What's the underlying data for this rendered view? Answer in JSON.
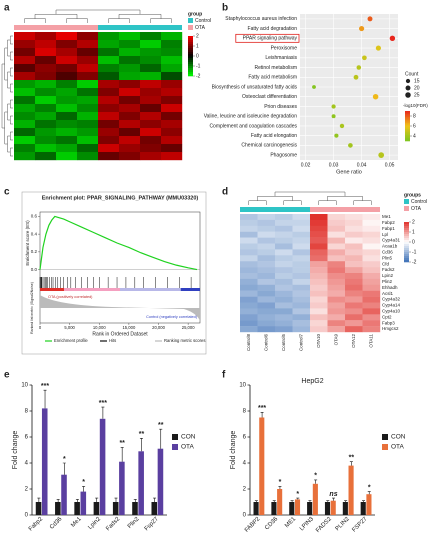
{
  "chart_data": [
    {
      "panel": "a",
      "type": "heatmap",
      "groups": [
        {
          "name": "Control",
          "color": "#2ec4c6"
        },
        {
          "name": "OTA",
          "color": "#f4a0a6"
        }
      ],
      "legend_title": "group",
      "column_group": [
        1,
        1,
        1,
        1,
        0,
        0,
        0,
        0
      ],
      "colormap": [
        "#00ff00",
        "#000000",
        "#ff0000"
      ],
      "zlim": [
        -2,
        2
      ],
      "zticks": [
        2,
        1,
        0,
        -1,
        -2
      ],
      "matrix": [
        [
          1.6,
          1.3,
          1.8,
          1.1,
          -1.2,
          -1.5,
          -1.0,
          -1.4
        ],
        [
          1.2,
          1.5,
          1.0,
          1.4,
          -1.3,
          -1.1,
          -1.6,
          -1.0
        ],
        [
          0.9,
          1.7,
          1.3,
          0.8,
          -0.9,
          -1.4,
          -1.2,
          -1.1
        ],
        [
          1.4,
          0.8,
          1.6,
          1.2,
          -1.5,
          -0.9,
          -1.1,
          -1.5
        ],
        [
          0.7,
          1.1,
          0.9,
          1.5,
          -1.0,
          -1.2,
          -0.8,
          -1.3
        ],
        [
          1.3,
          1.0,
          0.6,
          1.0,
          -0.7,
          -1.3,
          -1.4,
          -0.6
        ],
        [
          -1.2,
          -1.4,
          -1.0,
          -1.6,
          1.3,
          1.1,
          1.5,
          1.2
        ],
        [
          -1.5,
          -1.1,
          -1.3,
          -0.9,
          1.0,
          1.6,
          1.2,
          1.4
        ],
        [
          -0.9,
          -1.6,
          -1.2,
          -1.3,
          1.4,
          0.9,
          1.3,
          1.0
        ],
        [
          -1.3,
          -1.0,
          -1.5,
          -1.1,
          1.1,
          1.3,
          0.8,
          1.6
        ],
        [
          -1.1,
          -1.3,
          -0.8,
          -1.4,
          1.5,
          1.0,
          1.4,
          0.9
        ],
        [
          -1.4,
          -0.9,
          -1.1,
          -1.0,
          0.9,
          1.4,
          1.1,
          1.3
        ],
        [
          -0.8,
          -1.2,
          -1.4,
          -1.2,
          1.2,
          0.8,
          1.6,
          1.1
        ],
        [
          -1.6,
          -1.1,
          -0.9,
          -1.5,
          1.0,
          1.5,
          0.9,
          1.4
        ],
        [
          -1.0,
          -1.5,
          -1.3,
          -0.8,
          1.6,
          1.2,
          1.0,
          0.8
        ],
        [
          -1.2,
          -0.8,
          -1.6,
          -1.1,
          0.8,
          1.0,
          1.3,
          1.5
        ]
      ]
    },
    {
      "panel": "b",
      "type": "dot",
      "categories": [
        "Staphylococcus aureus infection",
        "Fatty acid degradation",
        "PPAR signaling pathway",
        "Peroxisome",
        "Leishmaniasis",
        "Retinol metabolism",
        "Fatty acid metabolism",
        "Biosynthesis of unsaturated fatty acids",
        "Osteoclast differentiation",
        "Prion diseases",
        "Valine, leucine and isoleucine degradation",
        "Complement and coagulation cascades",
        "Fatty acid elongation",
        "Chemical carcinogenesis",
        "Phagosome"
      ],
      "highlight": 2,
      "values": [
        0.043,
        0.04,
        0.051,
        0.046,
        0.041,
        0.039,
        0.038,
        0.023,
        0.045,
        0.03,
        0.03,
        0.033,
        0.031,
        0.036,
        0.047
      ],
      "counts": [
        20,
        22,
        24,
        22,
        18,
        17,
        19,
        12,
        25,
        15,
        13,
        16,
        14,
        18,
        27
      ],
      "neg_log10_fdr": [
        8,
        6.8,
        9,
        5.5,
        5,
        4.5,
        4.6,
        3.2,
        6.2,
        4,
        3.5,
        4.2,
        3.6,
        4,
        4.5
      ],
      "xlabel": "Gene ratio",
      "xlim": [
        0.018,
        0.053
      ],
      "xticks": [
        0.02,
        0.03,
        0.04,
        0.05
      ],
      "size_title": "Count",
      "size_ticks": [
        15,
        20,
        25
      ],
      "color_title": "-log10(FDR)",
      "color_ticks": [
        8,
        6,
        4
      ],
      "color_lim": [
        3,
        9
      ],
      "colormap": [
        "#7cc520",
        "#f0c419",
        "#e8261c"
      ]
    },
    {
      "panel": "c",
      "type": "line",
      "title": "Enrichment plot: PPAR_SIGNALING_PATHWAY (MMU03320)",
      "ylabel": "Enrichment score (ES)",
      "xlabel": "Rank in Ordered Dataset",
      "ylabel2": "Ranked list metric (Signal2Noise)",
      "x": [
        0,
        500,
        1000,
        1500,
        2000,
        2500,
        3000,
        4000,
        5000,
        7000,
        9000,
        11000,
        13000,
        15000,
        17000,
        19000,
        21000,
        23000,
        25000,
        26500
      ],
      "values": [
        0,
        0.25,
        0.4,
        0.5,
        0.56,
        0.6,
        0.59,
        0.57,
        0.54,
        0.48,
        0.42,
        0.36,
        0.3,
        0.25,
        0.19,
        0.14,
        0.09,
        0.05,
        0.02,
        0
      ],
      "color": "#1fd21f",
      "hits": [
        0,
        100,
        200,
        300,
        500,
        700,
        900,
        1100,
        1300,
        1600,
        1900,
        2200,
        2600,
        3000,
        3500,
        4000,
        4600,
        5200,
        6000,
        7000,
        8000,
        9000,
        10000,
        11500,
        13000,
        14500,
        16000,
        17500,
        19500,
        21500,
        23500,
        25500
      ],
      "xlim": [
        0,
        27000
      ],
      "xticks": [
        0,
        {
          "value": 5000,
          "label": "5,000"
        },
        {
          "value": 10000,
          "label": "10,000"
        },
        {
          "value": 15000,
          "label": "15,000"
        },
        {
          "value": 20000,
          "label": "20,000"
        },
        {
          "value": 25000,
          "label": "25,000"
        }
      ],
      "ylim": [
        -0.05,
        0.65
      ],
      "yticks": [
        {
          "value": 0,
          "label": "0.0"
        },
        {
          "value": 0.2,
          "label": "0.2"
        },
        {
          "value": 0.4,
          "label": "0.4"
        },
        {
          "value": 0.6,
          "label": "0.6"
        }
      ],
      "annotations": [
        "OTA (positively correlated)",
        "Control (negatively correlated)"
      ],
      "legend": [
        "Enrichment profile",
        "Hits",
        "Ranking metric scores"
      ]
    },
    {
      "panel": "d",
      "type": "heatmap",
      "groups": [
        {
          "name": "Control",
          "color": "#2ec4c6"
        },
        {
          "name": "OTA",
          "color": "#f4a0a6"
        }
      ],
      "legend_title": "groups",
      "column_group": [
        0,
        0,
        0,
        0,
        1,
        1,
        1,
        1
      ],
      "columns": [
        "Control8",
        "Control6",
        "Control5",
        "Control7",
        "OTA10",
        "OTA9",
        "OTA12",
        "OTA11"
      ],
      "rows": [
        "Me1",
        "Fabp2",
        "Fabp1",
        "Lpl",
        "Cyp4a31",
        "Acaa1b",
        "Cd36",
        "Plin5",
        "Cfd",
        "Fads2",
        "Lpin2",
        "Plin2",
        "Ehhadh",
        "Acsl1",
        "Cyp4a32",
        "Cyp4a14",
        "Cyp4a10",
        "Cpt2",
        "Fabp3",
        "Hmgcs2"
      ],
      "colormap": [
        "#3b6fb6",
        "#ffffff",
        "#e0302a"
      ],
      "zlim": [
        -2,
        2
      ],
      "zticks": [
        2,
        1,
        0,
        -1,
        -2
      ],
      "matrix": [
        [
          -0.8,
          -0.6,
          -0.7,
          -0.5,
          2.0,
          0.4,
          0.3,
          0.2
        ],
        [
          -0.7,
          -0.8,
          -0.6,
          -0.6,
          1.9,
          0.5,
          0.4,
          0.1
        ],
        [
          -0.6,
          -0.7,
          -0.8,
          -0.5,
          1.8,
          0.6,
          0.3,
          0.2
        ],
        [
          -0.9,
          -0.5,
          -0.6,
          -0.7,
          1.7,
          0.3,
          0.5,
          0.4
        ],
        [
          -0.5,
          -0.8,
          -0.7,
          -0.6,
          1.6,
          0.7,
          0.2,
          0.3
        ],
        [
          -0.7,
          -0.6,
          -0.9,
          -0.5,
          1.8,
          0.4,
          0.6,
          0.1
        ],
        [
          -0.8,
          -0.7,
          -0.5,
          -0.8,
          1.5,
          0.8,
          0.5,
          0.4
        ],
        [
          -0.6,
          -0.9,
          -0.7,
          -0.6,
          1.4,
          0.6,
          0.7,
          0.3
        ],
        [
          -0.9,
          -0.8,
          -0.6,
          -0.7,
          0.9,
          1.2,
          0.6,
          0.5
        ],
        [
          -1.0,
          -0.9,
          -0.8,
          -0.7,
          0.8,
          1.3,
          0.9,
          0.6
        ],
        [
          -0.9,
          -1.0,
          -0.7,
          -0.8,
          0.7,
          1.1,
          1.2,
          0.8
        ],
        [
          -1.1,
          -0.8,
          -0.9,
          -0.6,
          0.6,
          1.0,
          1.3,
          0.9
        ],
        [
          -1.2,
          -1.1,
          -0.8,
          -0.9,
          0.5,
          0.9,
          1.4,
          1.0
        ],
        [
          -1.0,
          -1.2,
          -1.0,
          -0.8,
          0.6,
          0.8,
          1.2,
          1.3
        ],
        [
          -1.3,
          -1.0,
          -1.1,
          -0.9,
          0.4,
          1.1,
          1.0,
          1.4
        ],
        [
          -1.2,
          -1.3,
          -0.9,
          -1.0,
          0.5,
          0.9,
          1.3,
          1.2
        ],
        [
          -1.1,
          -1.2,
          -1.2,
          -0.8,
          0.3,
          1.0,
          1.1,
          1.5
        ],
        [
          -1.3,
          -1.1,
          -1.0,
          -1.1,
          0.6,
          0.8,
          1.4,
          1.1
        ],
        [
          -1.4,
          -1.2,
          -1.1,
          -0.9,
          0.4,
          1.2,
          1.0,
          1.3
        ],
        [
          -1.2,
          -1.4,
          -1.3,
          -1.0,
          0.5,
          0.9,
          1.5,
          1.2
        ]
      ]
    },
    {
      "panel": "e",
      "type": "bar",
      "categories": [
        "Fabp2",
        "Cd36",
        "Me1",
        "Lpin2",
        "Fads2",
        "Plin2",
        "Fsp27"
      ],
      "series": [
        {
          "name": "CON",
          "color": "#1a1a1a",
          "values": [
            1,
            1,
            1,
            1,
            1,
            1,
            1
          ],
          "errors": [
            0.3,
            0.2,
            0.2,
            0.3,
            0.3,
            0.2,
            0.3
          ]
        },
        {
          "name": "OTA",
          "color": "#5a3fa0",
          "values": [
            8.2,
            3.1,
            1.8,
            7.4,
            4.1,
            4.9,
            5.1
          ],
          "errors": [
            1.4,
            0.9,
            0.4,
            0.9,
            1.1,
            1.0,
            1.5
          ]
        }
      ],
      "significance": [
        "***",
        "*",
        "*",
        "***",
        "**",
        "**",
        "**"
      ],
      "ylabel": "Fold change",
      "ylim": [
        0,
        10
      ],
      "yticks": [
        0,
        2,
        4,
        6,
        8,
        10
      ]
    },
    {
      "panel": "f",
      "type": "bar",
      "title": "HepG2",
      "categories": [
        "FABP2",
        "CD36",
        "ME1",
        "LPIN3",
        "FADS2",
        "PLIN2",
        "FSP27"
      ],
      "series": [
        {
          "name": "CON",
          "color": "#1a1a1a",
          "values": [
            1,
            1,
            1,
            1,
            1,
            1,
            1
          ],
          "errors": [
            0.1,
            0.1,
            0.1,
            0.1,
            0.1,
            0.1,
            0.1
          ]
        },
        {
          "name": "OTA",
          "color": "#e8703a",
          "values": [
            7.5,
            2.0,
            1.2,
            2.4,
            1.1,
            3.8,
            1.6
          ],
          "errors": [
            0.4,
            0.2,
            0.1,
            0.3,
            0.2,
            0.3,
            0.2
          ]
        }
      ],
      "significance": [
        "***",
        "*",
        "*",
        "*",
        "ns",
        "**",
        "*"
      ],
      "ylabel": "Fold change",
      "ylim": [
        0,
        10
      ],
      "yticks": [
        0,
        2,
        4,
        6,
        8,
        10
      ]
    }
  ]
}
